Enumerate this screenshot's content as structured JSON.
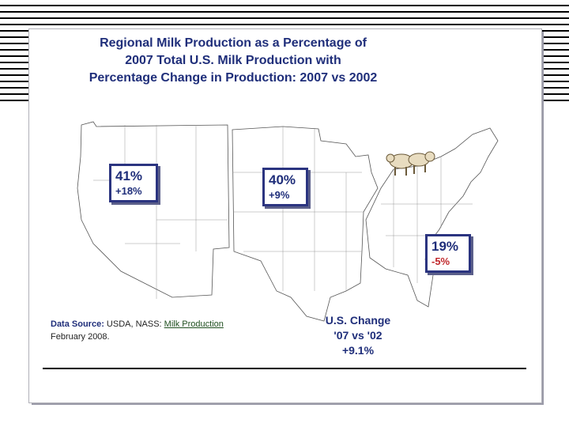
{
  "title": {
    "line1": "Regional Milk Production as a Percentage of",
    "line2": "2007 Total U.S. Milk Production with",
    "line3": "Percentage Change in Production: 2007 vs 2002"
  },
  "regions": {
    "west": {
      "share": "41%",
      "change": "+18%"
    },
    "central": {
      "share": "40%",
      "change": "+9%"
    },
    "east": {
      "share": "19%",
      "change": "-5%"
    }
  },
  "source": {
    "label": "Data Source:",
    "text": "USDA, NASS:",
    "link": "Milk Production",
    "date": "February 2008."
  },
  "us_change": {
    "line1": "U.S. Change",
    "line2": "'07 vs '02",
    "line3": "+9.1%"
  },
  "colors": {
    "title": "#1f2e7a",
    "callout_border": "#2b3480",
    "negative": "#c0282c"
  },
  "icons": [
    "cow-illustration"
  ]
}
